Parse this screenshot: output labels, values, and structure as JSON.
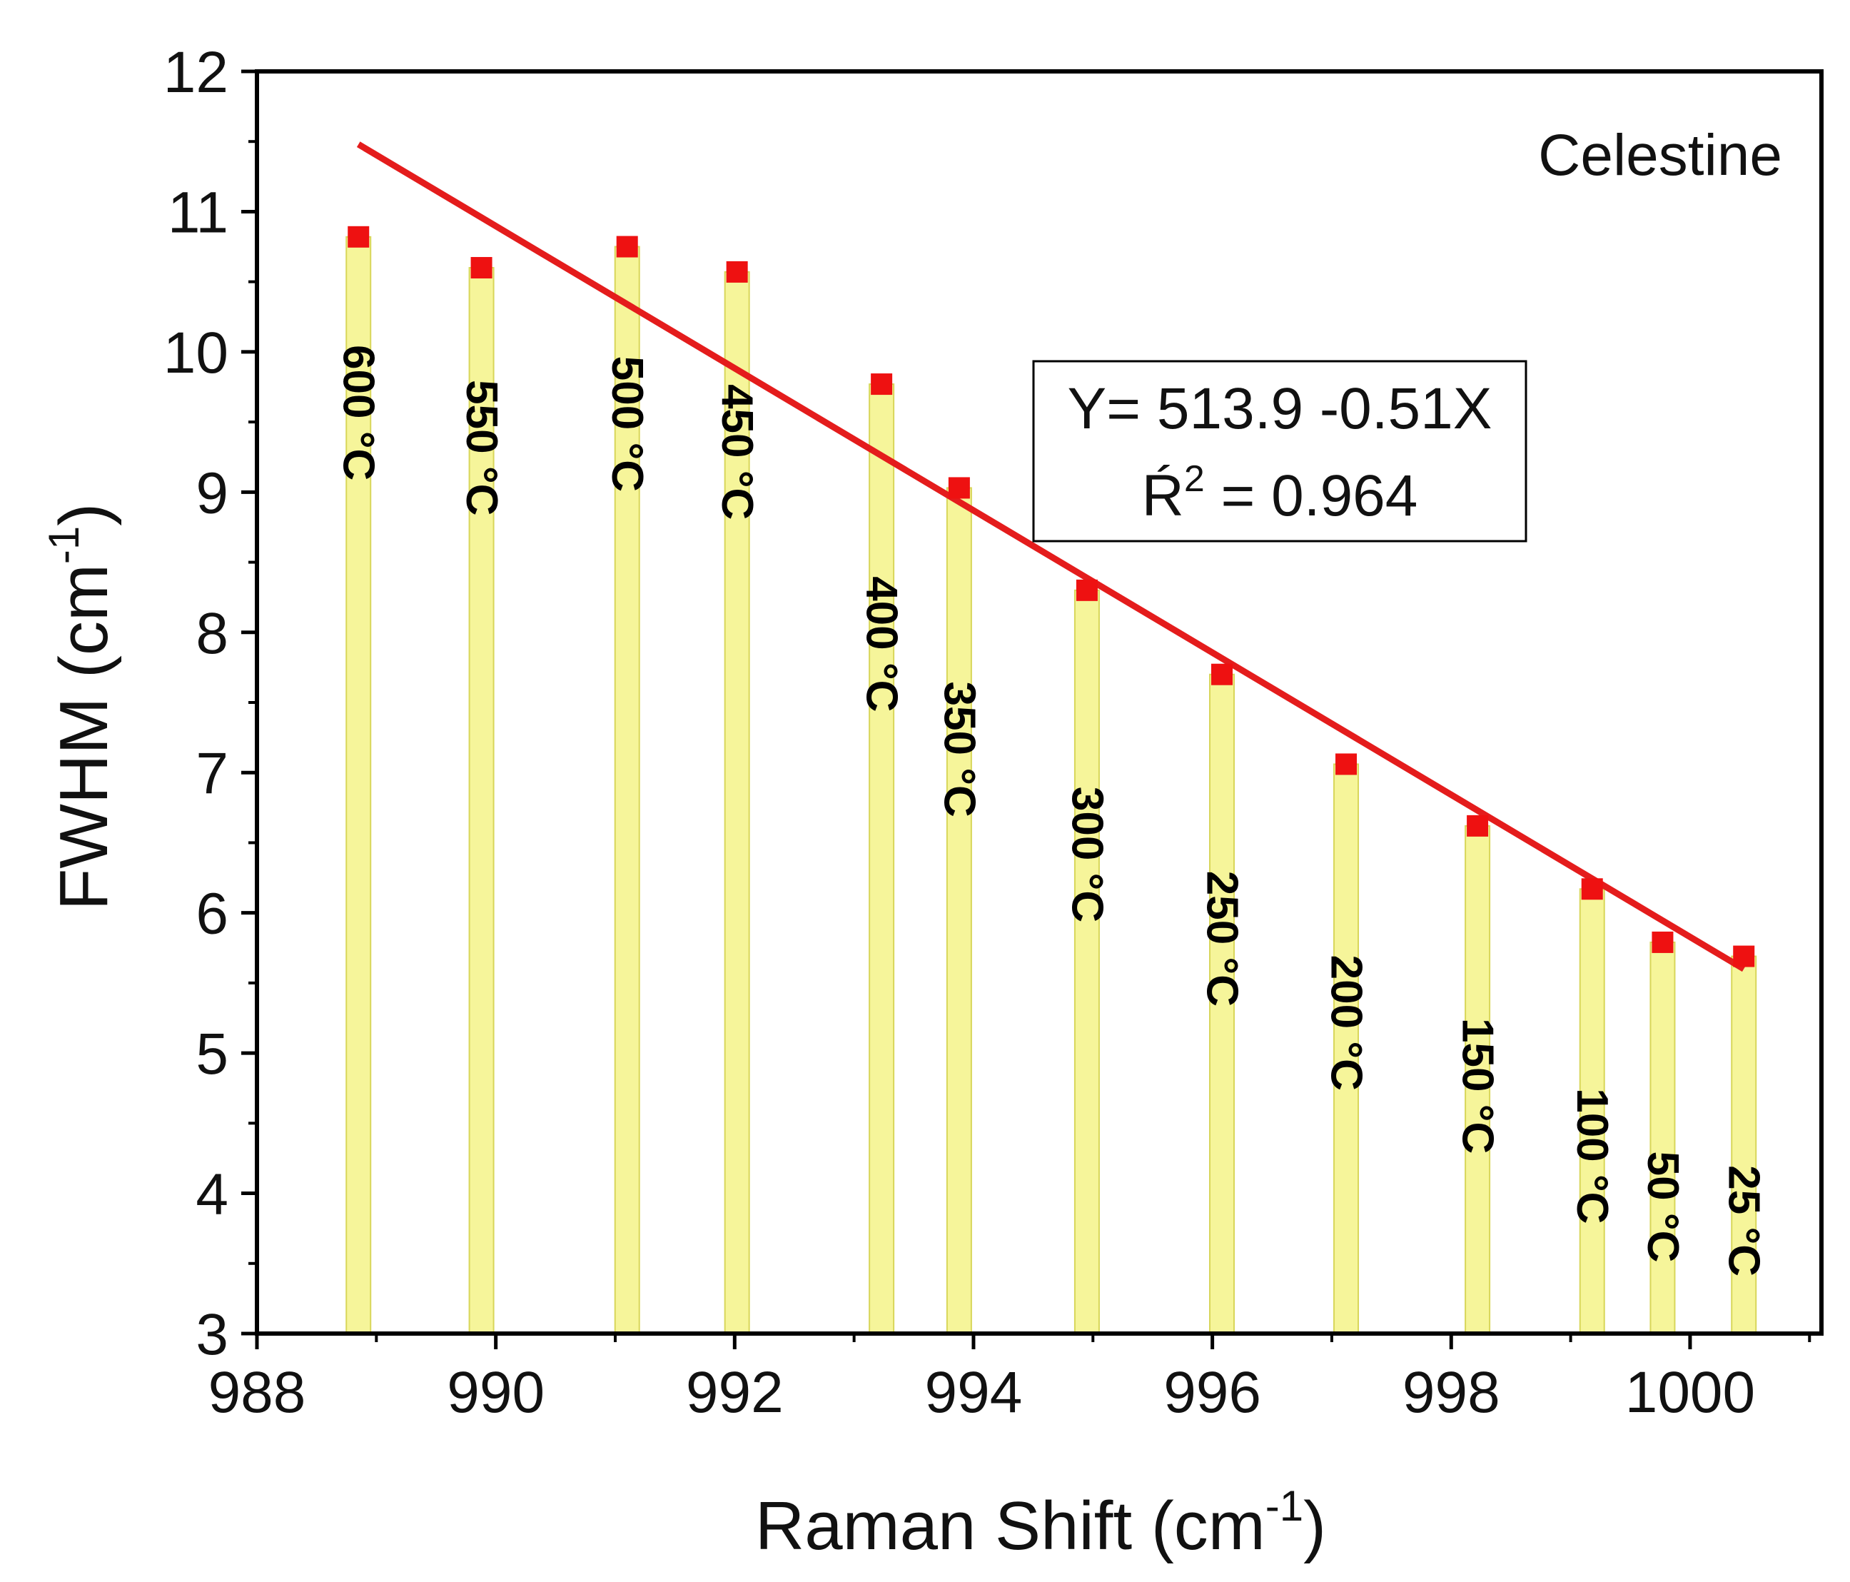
{
  "chart_data": {
    "type": "bar",
    "title": "",
    "annotation": "Celestine",
    "xlabel": "Raman Shift (cm",
    "xlabel_sup": "-1",
    "xlabel_end": ")",
    "ylabel": "FWHM (cm",
    "ylabel_sup": "-1",
    "ylabel_end": ")",
    "xlim": [
      988,
      1001.1
    ],
    "ylim": [
      3,
      12
    ],
    "x_ticks": [
      988,
      990,
      992,
      994,
      996,
      998,
      1000
    ],
    "y_ticks": [
      3,
      4,
      5,
      6,
      7,
      8,
      9,
      10,
      11,
      12
    ],
    "series": [
      {
        "name": "FWHM",
        "x": [
          988.85,
          989.88,
          991.1,
          992.02,
          993.23,
          993.88,
          994.95,
          996.08,
          997.12,
          998.22,
          999.18,
          999.77,
          1000.45
        ],
        "values": [
          10.82,
          10.6,
          10.75,
          10.57,
          9.77,
          9.03,
          8.3,
          7.7,
          7.06,
          6.62,
          6.17,
          5.79,
          5.69
        ],
        "labels": [
          "600 °C",
          "550 °C",
          "500 °C",
          "450 °C",
          "400 °C",
          "350 °C",
          "300 °C",
          "250 °C",
          "200 °C",
          "150 °C",
          "100 °C",
          "50 °C",
          "25 °C"
        ],
        "label_top_y": [
          10.05,
          9.8,
          9.97,
          9.77,
          8.4,
          7.65,
          6.9,
          6.3,
          5.7,
          5.25,
          4.75,
          4.3,
          4.2
        ]
      }
    ],
    "fit": {
      "x_range": [
        988.85,
        1000.45
      ],
      "y_range": [
        11.48,
        5.6
      ]
    },
    "fit_box": {
      "equation": "Y= 513.9 -0.51X",
      "r2_prefix": "Ŕ",
      "r2_sup": "2",
      "r2_value": " = 0.964"
    },
    "colors": {
      "bar_fill": "#f6f59a",
      "bar_edge": "#d8d65a",
      "marker": "#ee1111",
      "fit_line": "#e41c1c",
      "axis": "#000000"
    }
  }
}
